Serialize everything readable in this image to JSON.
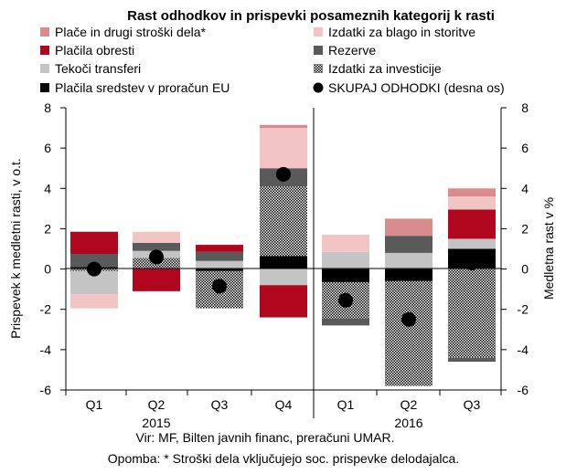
{
  "chart_data": {
    "type": "bar",
    "title": "Rast odhodkov in prispevki posameznih kategorij k rasti",
    "ylabel": "Prispevek k medletni rasti, v o.t.",
    "y2label": "Medletna rast v %",
    "ylim": [
      -6,
      8
    ],
    "y2lim": [
      -6,
      8
    ],
    "yticks": [
      "8",
      "6",
      "4",
      "2",
      "0",
      "-2",
      "-4",
      "-6"
    ],
    "y2ticks": [
      "8",
      "6",
      "4",
      "2",
      "0",
      "-2",
      "-4",
      "-6"
    ],
    "categories": [
      "Q1",
      "Q2",
      "Q3",
      "Q4",
      "Q1",
      "Q2",
      "Q3"
    ],
    "year_labels": [
      "2015",
      "2016"
    ],
    "legend_position": "top",
    "series": [
      {
        "name": "Plače in drugi stroški dela*",
        "color": "#d98c8c",
        "pattern": "solid",
        "values": [
          0,
          0,
          0,
          0.15,
          0,
          0.85,
          0.4
        ]
      },
      {
        "name": "Izdatki za blago in storitve",
        "color": "#f2c4c4",
        "pattern": "solid",
        "values": [
          -0.7,
          0.55,
          0,
          2.0,
          0.85,
          0,
          0.65
        ]
      },
      {
        "name": "Plačila obresti",
        "color": "#b0061e",
        "pattern": "solid",
        "values": [
          1.1,
          -1.1,
          0.35,
          -1.6,
          0,
          0,
          1.45
        ]
      },
      {
        "name": "Rezerve",
        "color": "#5a5a5a",
        "pattern": "solid",
        "values": [
          0.65,
          0.4,
          0.45,
          0.9,
          -0.35,
          0.85,
          -0.2
        ]
      },
      {
        "name": "Tekoči transferi",
        "color": "#c4c4c4",
        "pattern": "solid",
        "values": [
          -1.15,
          0.35,
          0.4,
          -0.8,
          0.85,
          0.8,
          0.5
        ]
      },
      {
        "name": "Izdatki za investicije",
        "color": "#9a9a9a",
        "pattern": "checker",
        "values": [
          -0.1,
          0.55,
          -1.85,
          3.45,
          -1.8,
          -5.2,
          -4.4
        ]
      },
      {
        "name": "Plačila sredstev v proračun EU",
        "color": "#000000",
        "pattern": "solid",
        "values": [
          0.1,
          0,
          -0.1,
          0.65,
          -0.65,
          -0.6,
          1.0
        ]
      }
    ],
    "total": {
      "name": "SKUPAJ ODHODKI (desna os)",
      "values": [
        0.0,
        0.6,
        -0.85,
        4.7,
        -1.55,
        -2.5,
        0.3
      ]
    },
    "sign_order": [
      "Plačila sredstev v proračun EU",
      "Izdatki za investicije",
      "Tekoči transferi",
      "Rezerve",
      "Plačila obresti",
      "Izdatki za blago in storitve",
      "Plače in drugi stroški dela*"
    ]
  },
  "footer": {
    "source": "Vir: MF, Bilten javnih financ, preračuni UMAR.",
    "note": "Opomba: * Stroški dela vključujejo soc. prispevke delodajalca."
  }
}
